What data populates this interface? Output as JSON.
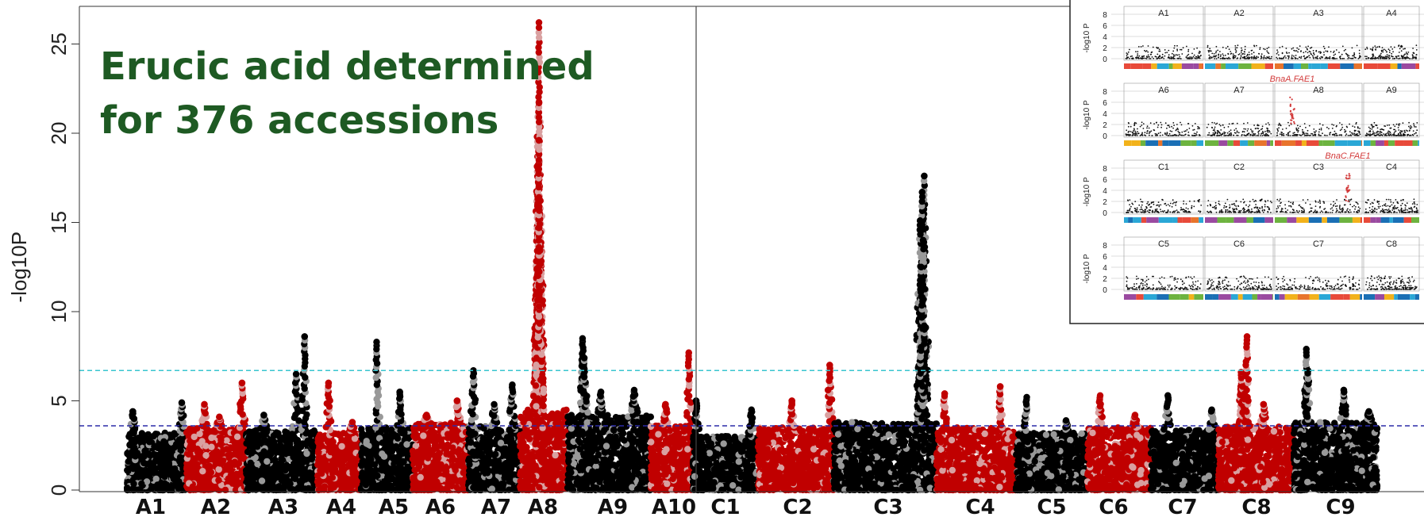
{
  "title_lines": [
    "Erucic acid determined",
    "for 376 accessions"
  ],
  "colors": {
    "title": "#1e5a23",
    "red": "#c00000",
    "pink": "#d9a0a0",
    "black": "#000000",
    "grey": "#999999",
    "cyan_threshold": "#39c5cf",
    "blue_threshold": "#2c2ca8",
    "inset_red": "#d23a3a"
  },
  "chart_data": [
    {
      "type": "scatter",
      "subtype": "manhattan",
      "ylabel": "-log10P",
      "xlabel": "",
      "ylim": [
        0,
        27
      ],
      "yticks": [
        0,
        5,
        10,
        15,
        20,
        25
      ],
      "grid": false,
      "thresholds": [
        {
          "value": 6.7,
          "color": "cyan",
          "style": "dashed"
        },
        {
          "value": 3.6,
          "color": "blue",
          "style": "dashed"
        }
      ],
      "divider_after": "A10",
      "chromosomes": [
        {
          "label": "A1",
          "color_pair": "black",
          "base_max": 3.2,
          "peaks": [
            [
              0.1,
              4.4
            ],
            [
              0.6,
              2.0
            ],
            [
              0.92,
              4.9
            ]
          ]
        },
        {
          "label": "A2",
          "color_pair": "red",
          "base_max": 3.5,
          "peaks": [
            [
              0.3,
              4.8
            ],
            [
              0.55,
              4.1
            ],
            [
              0.93,
              6.0
            ]
          ]
        },
        {
          "label": "A3",
          "color_pair": "black",
          "base_max": 3.4,
          "peaks": [
            [
              0.25,
              4.2
            ],
            [
              0.7,
              6.5
            ],
            [
              0.82,
              8.6
            ]
          ]
        },
        {
          "label": "A4",
          "color_pair": "red",
          "base_max": 3.2,
          "peaks": [
            [
              0.25,
              6.0
            ],
            [
              0.8,
              3.8
            ]
          ]
        },
        {
          "label": "A5",
          "color_pair": "black",
          "base_max": 3.5,
          "peaks": [
            [
              0.3,
              8.3
            ],
            [
              0.75,
              5.5
            ]
          ]
        },
        {
          "label": "A6",
          "color_pair": "red",
          "base_max": 3.8,
          "peaks": [
            [
              0.25,
              4.2
            ],
            [
              0.8,
              5.0
            ]
          ]
        },
        {
          "label": "A7",
          "color_pair": "black",
          "base_max": 3.6,
          "peaks": [
            [
              0.1,
              6.7
            ],
            [
              0.5,
              4.8
            ],
            [
              0.85,
              5.9
            ]
          ]
        },
        {
          "label": "A8",
          "color_pair": "red",
          "base_max": 4.5,
          "peaks": [
            [
              0.4,
              26.2
            ],
            [
              0.4,
              21.7
            ],
            [
              0.4,
              19.6
            ],
            [
              0.4,
              18.5
            ],
            [
              0.4,
              16.4
            ],
            [
              0.4,
              14.7
            ],
            [
              0.4,
              13.6
            ],
            [
              0.4,
              11.4
            ],
            [
              0.4,
              10.3
            ]
          ]
        },
        {
          "label": "A9",
          "color_pair": "black",
          "base_max": 4.2,
          "peaks": [
            [
              0.18,
              8.5
            ],
            [
              0.2,
              7.4
            ],
            [
              0.4,
              5.5
            ],
            [
              0.8,
              5.6
            ]
          ]
        },
        {
          "label": "A10",
          "color_pair": "red",
          "base_max": 3.6,
          "peaks": [
            [
              0.35,
              4.8
            ],
            [
              0.9,
              7.7
            ]
          ]
        },
        {
          "label": "C1",
          "color_pair": "black",
          "base_max": 3.0,
          "peaks": [
            [
              0.05,
              5.0
            ],
            [
              0.5,
              3.0
            ],
            [
              0.9,
              4.5
            ]
          ]
        },
        {
          "label": "C2",
          "color_pair": "red",
          "base_max": 3.5,
          "peaks": [
            [
              0.45,
              5.0
            ],
            [
              0.95,
              7.0
            ]
          ]
        },
        {
          "label": "C3",
          "color_pair": "black",
          "base_max": 3.8,
          "peaks": [
            [
              0.88,
              17.6
            ],
            [
              0.86,
              16.7
            ],
            [
              0.84,
              15.1
            ],
            [
              0.87,
              14.0
            ],
            [
              0.85,
              12.5
            ],
            [
              0.86,
              10.8
            ],
            [
              0.88,
              9.2
            ],
            [
              0.85,
              8.0
            ]
          ]
        },
        {
          "label": "C4",
          "color_pair": "red",
          "base_max": 3.5,
          "peaks": [
            [
              0.1,
              5.4
            ],
            [
              0.8,
              5.8
            ]
          ]
        },
        {
          "label": "C5",
          "color_pair": "black",
          "base_max": 3.2,
          "peaks": [
            [
              0.15,
              5.2
            ],
            [
              0.7,
              3.9
            ]
          ]
        },
        {
          "label": "C6",
          "color_pair": "red",
          "base_max": 3.5,
          "peaks": [
            [
              0.2,
              5.3
            ],
            [
              0.75,
              4.2
            ]
          ]
        },
        {
          "label": "C7",
          "color_pair": "black",
          "base_max": 3.4,
          "peaks": [
            [
              0.25,
              5.3
            ],
            [
              0.9,
              4.5
            ]
          ]
        },
        {
          "label": "C8",
          "color_pair": "red",
          "base_max": 3.6,
          "peaks": [
            [
              0.3,
              6.6
            ],
            [
              0.32,
              5.8
            ],
            [
              0.35,
              5.2
            ],
            [
              0.38,
              8.6
            ],
            [
              0.6,
              4.8
            ]
          ]
        },
        {
          "label": "C9",
          "color_pair": "black",
          "base_max": 3.8,
          "peaks": [
            [
              0.15,
              7.9
            ],
            [
              0.17,
              6.7
            ],
            [
              0.6,
              5.6
            ],
            [
              0.9,
              4.4
            ]
          ]
        }
      ]
    },
    {
      "type": "scatter",
      "subtype": "manhattan-inset",
      "ylabel": "-log10 P",
      "ylim": [
        0,
        8
      ],
      "yticks": [
        0,
        2,
        4,
        6,
        8
      ],
      "rows": [
        {
          "labels": [
            "A1",
            "A2",
            "A3",
            "A4"
          ],
          "annotation": ""
        },
        {
          "labels": [
            "A6",
            "A7",
            "A8",
            "A9"
          ],
          "annotation": "BnaA.FAE1"
        },
        {
          "labels": [
            "C1",
            "C2",
            "C3",
            "C4"
          ],
          "annotation": "BnaC.FAE1"
        },
        {
          "labels": [
            "C5",
            "C6",
            "C7",
            "C8"
          ],
          "annotation": ""
        }
      ]
    }
  ]
}
